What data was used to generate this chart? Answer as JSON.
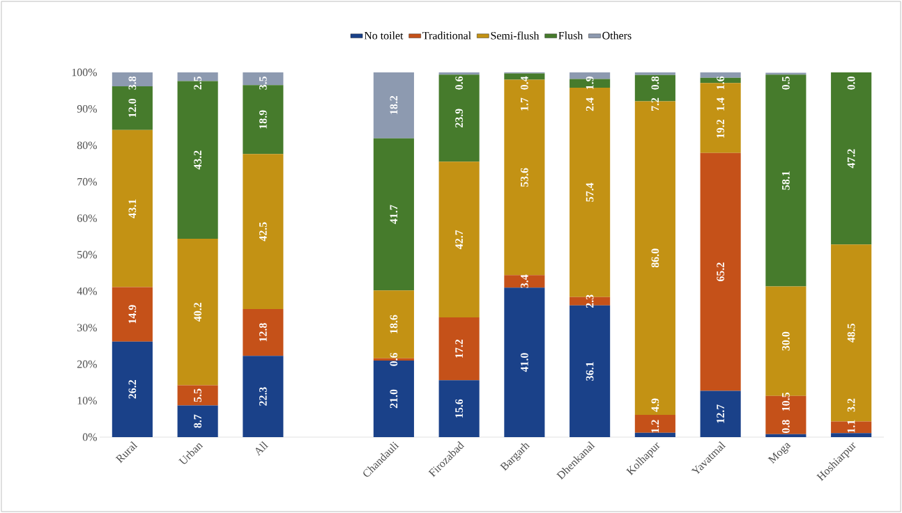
{
  "chart_data": {
    "type": "bar",
    "stacked": true,
    "legend": "top",
    "categories": [
      "Rural",
      "Urban",
      "All",
      null,
      "Chandauli",
      "Firozabad",
      "Bargarh",
      "Dhenkanal",
      "Kolhapur",
      "Yavatmal",
      "Moga",
      "Hoshiarpur"
    ],
    "ylim": [
      0,
      100
    ],
    "yticks": [
      {
        "value": 0,
        "label": "0%"
      },
      {
        "value": 10,
        "label": "10%"
      },
      {
        "value": 20,
        "label": "20%"
      },
      {
        "value": 30,
        "label": "30%"
      },
      {
        "value": 40,
        "label": "40%"
      },
      {
        "value": 50,
        "label": "50%"
      },
      {
        "value": 60,
        "label": "60%"
      },
      {
        "value": 70,
        "label": "70%"
      },
      {
        "value": 80,
        "label": "80%"
      },
      {
        "value": 90,
        "label": "90%"
      },
      {
        "value": 100,
        "label": "100%"
      }
    ],
    "series": [
      {
        "name": "No toilet",
        "color": "#1a4189",
        "values": [
          26.2,
          8.7,
          22.3,
          null,
          21.0,
          15.6,
          41.0,
          36.1,
          1.2,
          12.7,
          0.8,
          1.1
        ],
        "value_labels": [
          "26.2",
          "8.7",
          "22.3",
          null,
          "21.0",
          "15.6",
          "41.0",
          "36.1",
          "1.2",
          "12.7",
          "0.8",
          "1.1"
        ]
      },
      {
        "name": "Traditional",
        "color": "#c55119",
        "values": [
          14.9,
          5.5,
          12.8,
          null,
          0.6,
          17.2,
          3.4,
          2.3,
          4.9,
          65.2,
          10.5,
          3.2
        ],
        "value_labels": [
          "14.9",
          "5.5",
          "12.8",
          null,
          "0.6",
          "17.2",
          "3.4",
          "2.3",
          "4.9",
          "65.2",
          "10.5",
          "3.2"
        ]
      },
      {
        "name": "Semi-flush",
        "color": "#c39214",
        "values": [
          43.1,
          40.2,
          42.5,
          null,
          18.6,
          42.7,
          53.6,
          57.4,
          86.0,
          19.2,
          30.0,
          48.5
        ],
        "value_labels": [
          "43.1",
          "40.2",
          "42.5",
          null,
          "18.6",
          "42.7",
          "53.6",
          "57.4",
          "86.0",
          "19.2",
          "30.0",
          "48.5"
        ]
      },
      {
        "name": "Flush",
        "color": "#467b2c",
        "values": [
          12.0,
          43.2,
          18.9,
          null,
          41.7,
          23.9,
          1.7,
          2.4,
          7.2,
          1.4,
          58.1,
          47.2
        ],
        "value_labels": [
          "12.0",
          "43.2",
          "18.9",
          null,
          "41.7",
          "23.9",
          "1.7",
          "2.4",
          "7.2",
          "1.4",
          "58.1",
          "47.2"
        ]
      },
      {
        "name": "Others",
        "color": "#8d9ab0",
        "values": [
          3.8,
          2.5,
          3.5,
          null,
          18.2,
          0.6,
          0.4,
          1.9,
          0.8,
          1.6,
          0.5,
          0.0
        ],
        "value_labels": [
          "3.8",
          "2.5",
          "3.5",
          null,
          "18.2",
          "0.6",
          "0.4",
          "1.9",
          "0.8",
          "1.6",
          "0.5",
          "0.0"
        ]
      }
    ]
  }
}
